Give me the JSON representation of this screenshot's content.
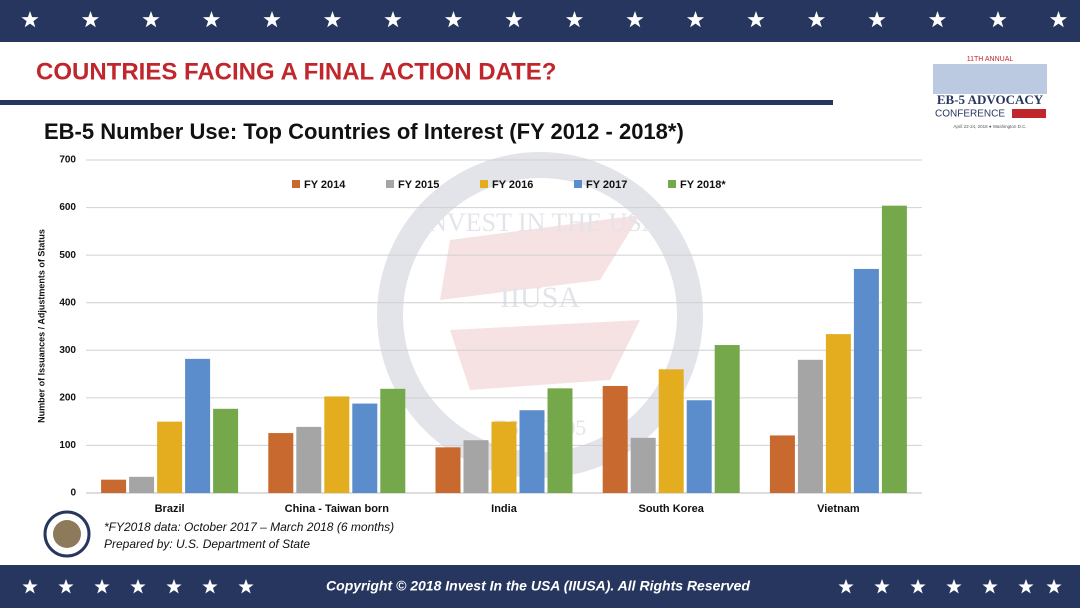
{
  "header": {
    "title": "COUNTRIES FACING A FINAL ACTION DATE?"
  },
  "logo": {
    "edition": "11TH ANNUAL",
    "name": "EB-5 ADVOCACY",
    "sub": "CONFERENCE",
    "date": "April 22-24, 2018 ● Washington D.C."
  },
  "watermark": {
    "arc": "INVEST IN THE USA",
    "center": "IIUSA",
    "est": "EST. 2005"
  },
  "chart_data": {
    "type": "bar",
    "title": "EB-5 Number Use: Top Countries of Interest (FY 2012 - 2018*)",
    "ylabel": "Number of Issuances / Adjustments of Status",
    "categories": [
      "Brazil",
      "China - Taiwan born",
      "India",
      "South Korea",
      "Vietnam"
    ],
    "series": [
      {
        "name": "FY 2014",
        "color": "#c8692f",
        "values": [
          28,
          126,
          96,
          225,
          121
        ]
      },
      {
        "name": "FY 2015",
        "color": "#a5a5a5",
        "values": [
          34,
          139,
          111,
          116,
          280
        ]
      },
      {
        "name": "FY 2016",
        "color": "#e4ad20",
        "values": [
          150,
          203,
          150,
          260,
          334
        ]
      },
      {
        "name": "FY 2017",
        "color": "#5b8ccc",
        "values": [
          282,
          188,
          174,
          195,
          471
        ]
      },
      {
        "name": "FY 2018*",
        "color": "#74a84a",
        "values": [
          177,
          219,
          220,
          311,
          604
        ]
      }
    ],
    "ylim": [
      0,
      700
    ],
    "yticks": [
      0,
      100,
      200,
      300,
      400,
      500,
      600,
      700
    ],
    "grid": true,
    "legend": "top"
  },
  "footnotes": [
    "*FY2018 data: October 2017 – March 2018 (6 months)",
    "Prepared by: U.S. Department of State"
  ],
  "footer": {
    "copyright": "Copyright © 2018 Invest In the USA (IIUSA). All Rights Reserved"
  }
}
